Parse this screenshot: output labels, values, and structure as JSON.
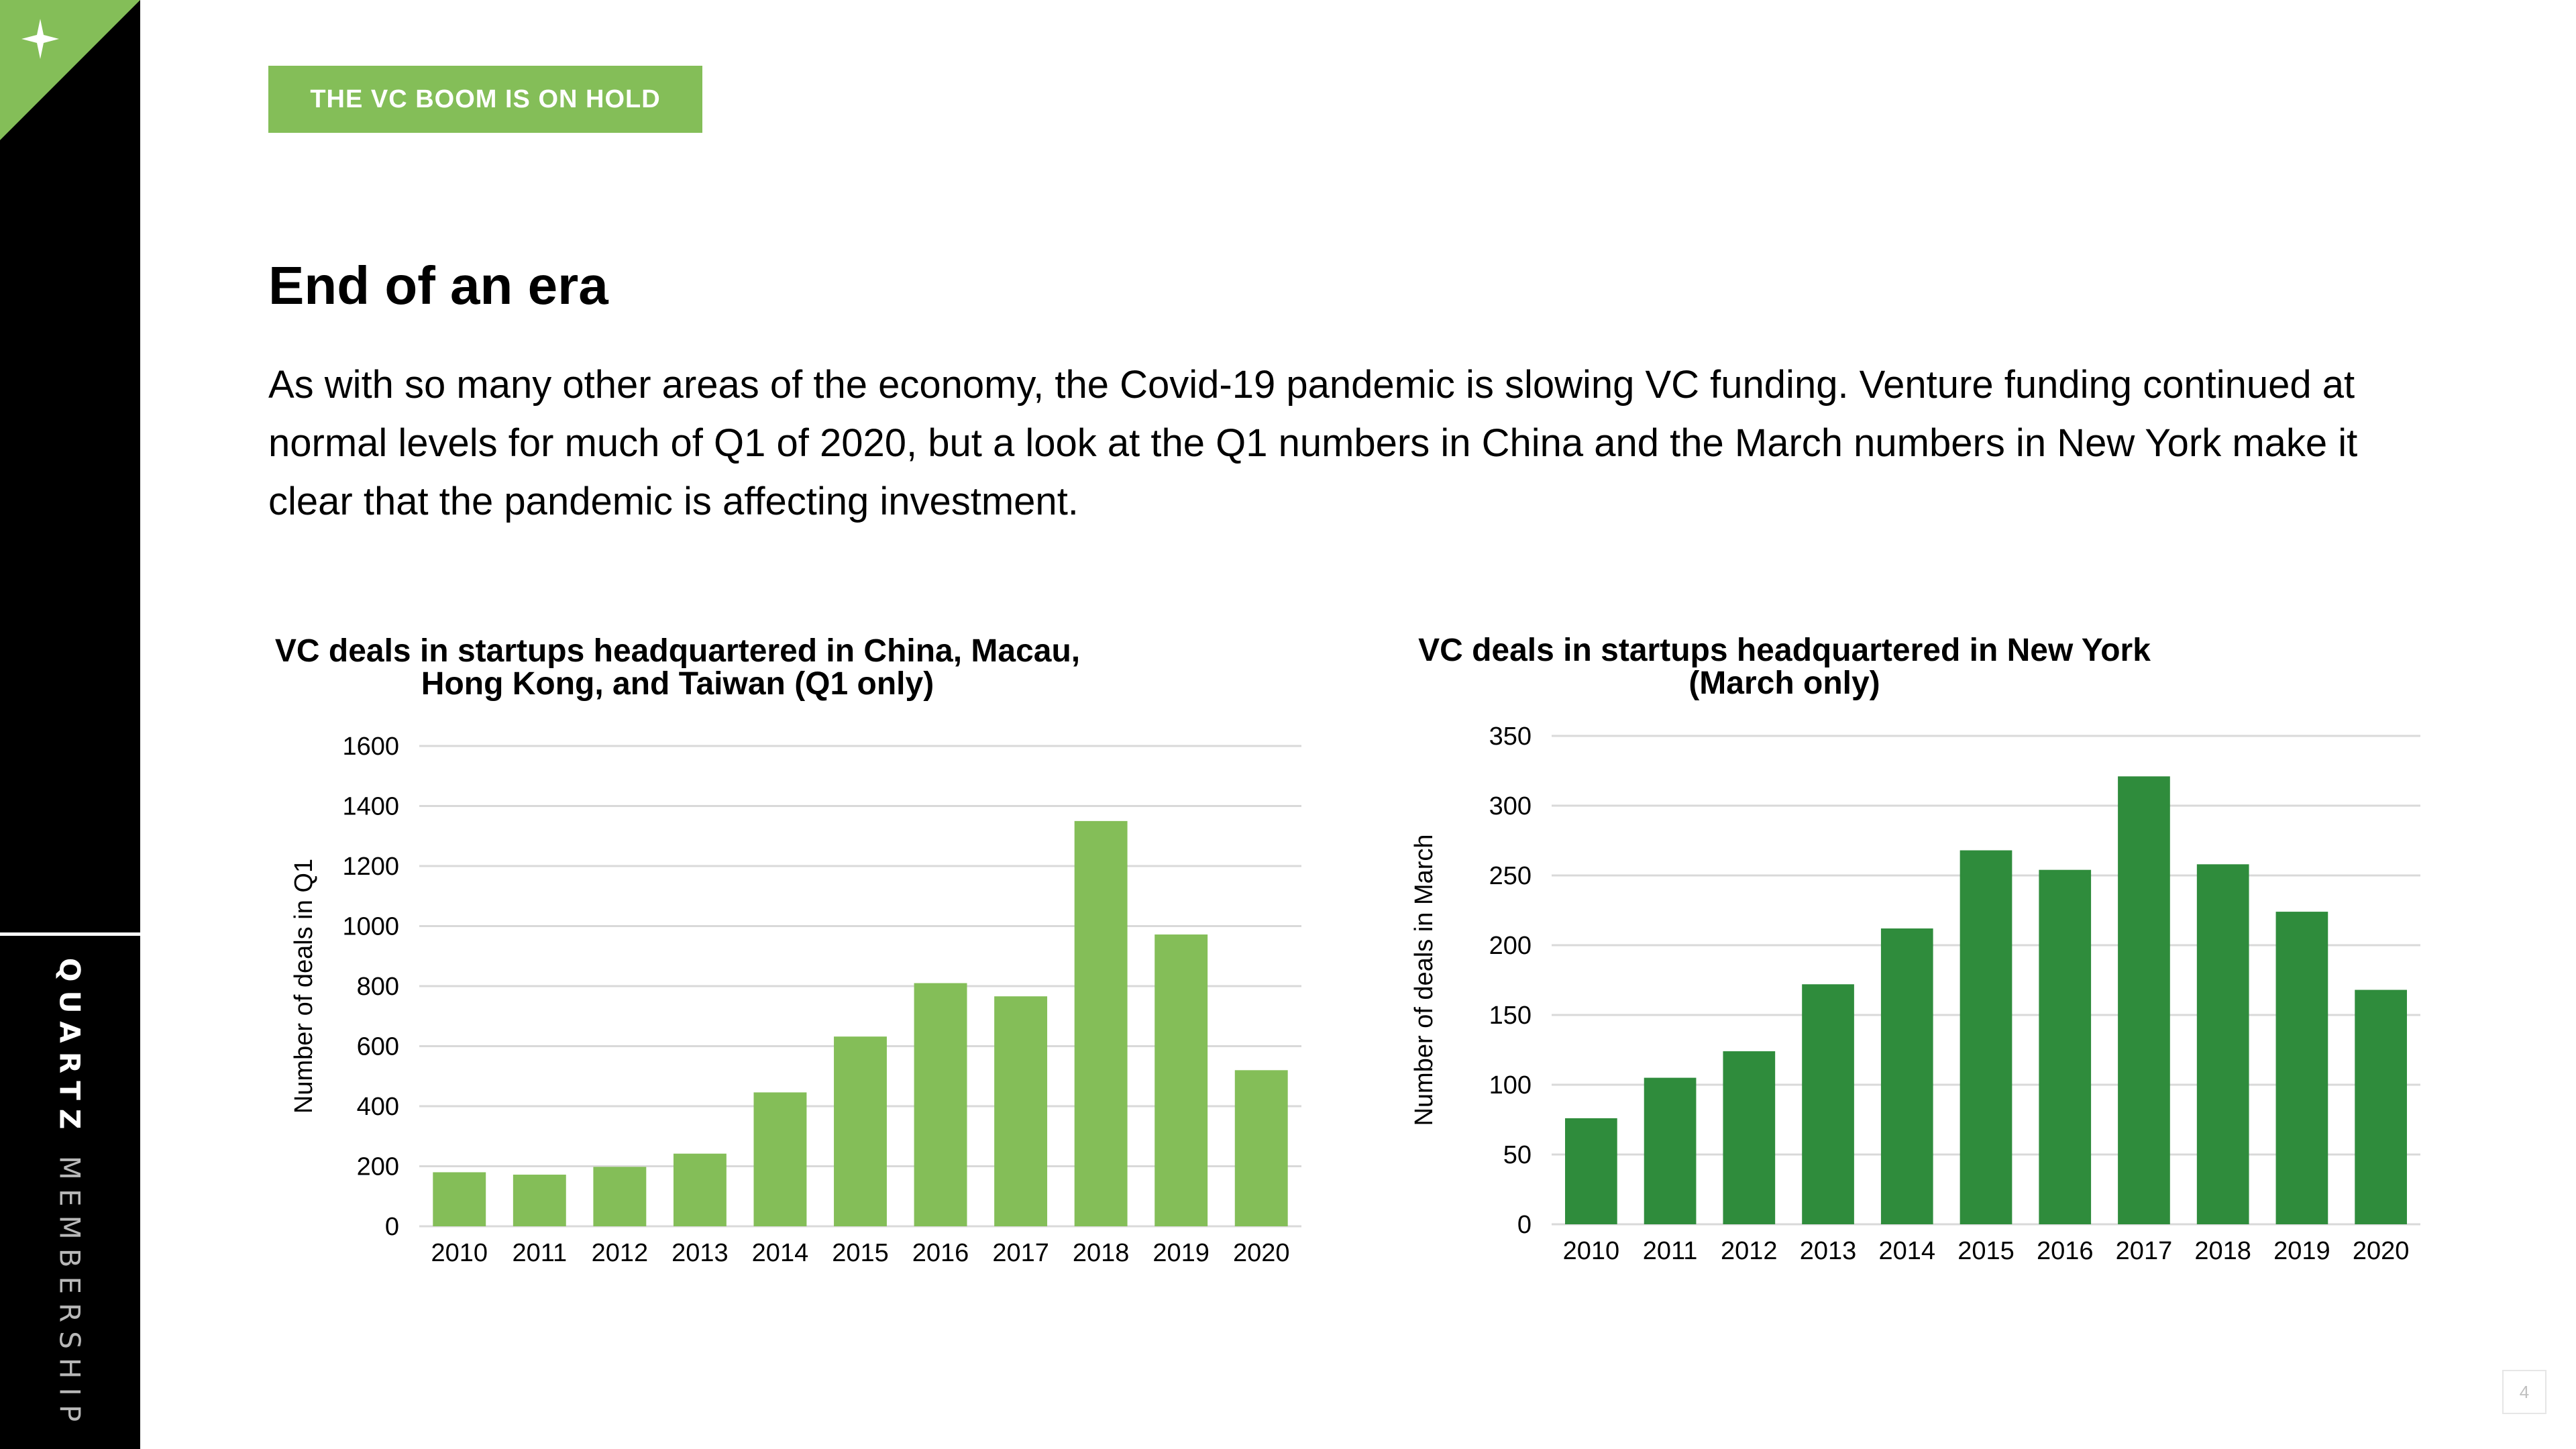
{
  "sidebar": {
    "brand_primary": "QUARTZ",
    "brand_secondary": "MEMBERSHIP",
    "accent_color": "#84be58",
    "icon": "sparkle-icon"
  },
  "kicker": "THE VC BOOM IS ON HOLD",
  "title": "End of an era",
  "body": "As with so many other areas of the economy, the Covid-19 pandemic is slowing VC funding. Venture funding continued at normal levels for much of Q1 of 2020, but a look at the Q1 numbers in China and the March numbers in New York make it clear that the pandemic is affecting investment.",
  "page_number": "4",
  "chart_data": [
    {
      "type": "bar",
      "title_lines": [
        "VC deals in startups headquartered in China, Macau,",
        "Hong Kong, and Taiwan (Q1 only)"
      ],
      "ylabel": "Number of deals in Q1",
      "xlabel": "",
      "categories": [
        "2010",
        "2011",
        "2012",
        "2013",
        "2014",
        "2015",
        "2016",
        "2017",
        "2018",
        "2019",
        "2020"
      ],
      "values": [
        180,
        172,
        198,
        242,
        446,
        632,
        810,
        766,
        1350,
        972,
        520
      ],
      "ylim": [
        0,
        1600
      ],
      "yticks": [
        "0",
        "200",
        "400",
        "600",
        "800",
        "1000",
        "1200",
        "1400",
        "1600"
      ],
      "grid": true,
      "legend": "none",
      "color": "#84be58"
    },
    {
      "type": "bar",
      "title_lines": [
        "VC deals in startups headquartered in New York",
        "(March only)"
      ],
      "ylabel": "Number of deals in March",
      "xlabel": "",
      "categories": [
        "2010",
        "2011",
        "2012",
        "2013",
        "2014",
        "2015",
        "2016",
        "2017",
        "2018",
        "2019",
        "2020"
      ],
      "values": [
        76,
        105,
        124,
        172,
        212,
        268,
        254,
        321,
        258,
        224,
        168
      ],
      "ylim": [
        0,
        350
      ],
      "yticks": [
        "0",
        "50",
        "100",
        "150",
        "200",
        "250",
        "300",
        "350"
      ],
      "grid": true,
      "legend": "none",
      "color": "#2f8c3c"
    }
  ]
}
